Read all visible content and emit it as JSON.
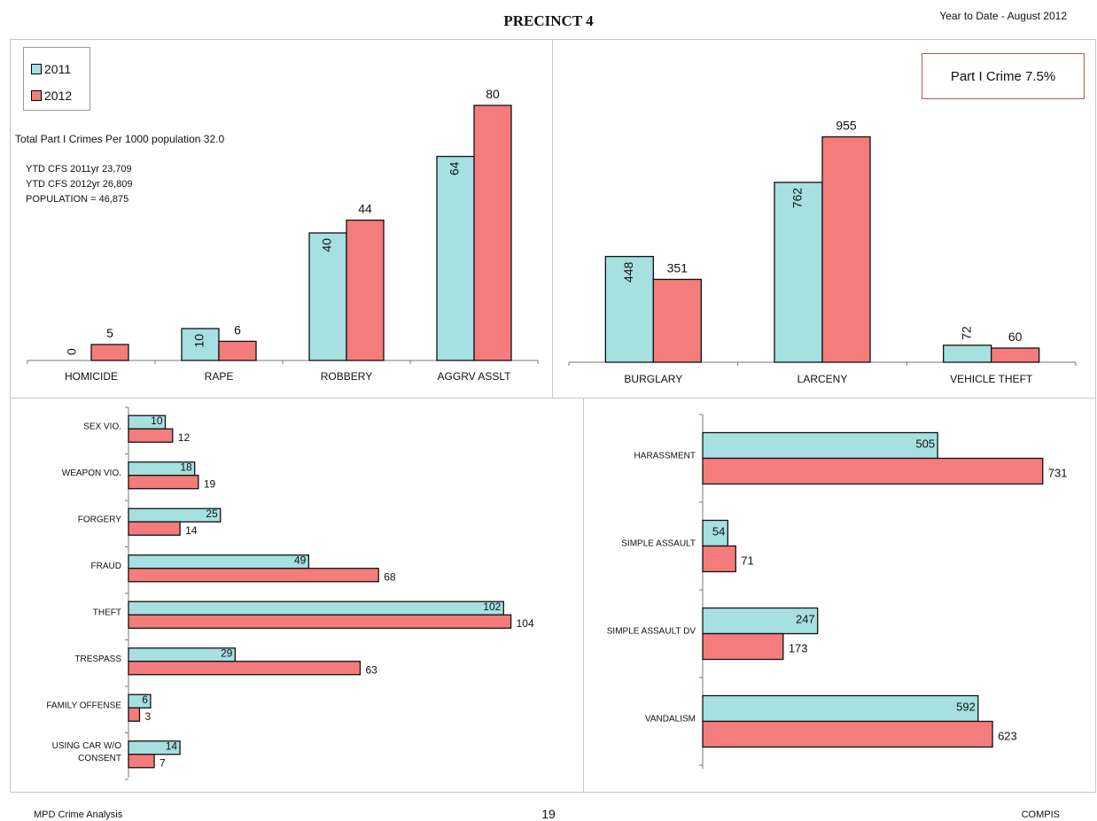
{
  "header": {
    "title": "PRECINCT 4",
    "subtitle": "Year to Date - August 2012"
  },
  "legend": {
    "s2011": "2011",
    "s2012": "2012"
  },
  "colors": {
    "s2011": "#a6e0e0",
    "s2012": "#f47c7c"
  },
  "stats": {
    "per_1000": "Total Part I Crimes Per 1000 population 32.0",
    "cfs_2011": "YTD CFS 2011yr 23,709",
    "cfs_2012": "YTD CFS 2012yr 26,809",
    "population": "POPULATION  = 46,875"
  },
  "badge": "Part I Crime 7.5%",
  "footer": {
    "left": "MPD Crime Analysis",
    "page": "19",
    "right": "COMPIS"
  },
  "chart_data": [
    {
      "type": "bar",
      "categories": [
        "HOMICIDE",
        "RAPE",
        "ROBBERY",
        "AGGRV ASSLT"
      ],
      "series": [
        {
          "name": "2011",
          "values": [
            0,
            10,
            40,
            64
          ]
        },
        {
          "name": "2012",
          "values": [
            5,
            6,
            44,
            80
          ]
        }
      ]
    },
    {
      "type": "bar",
      "categories": [
        "BURGLARY",
        "LARCENY",
        "VEHICLE THEFT"
      ],
      "series": [
        {
          "name": "2011",
          "values": [
            448,
            762,
            72
          ]
        },
        {
          "name": "2012",
          "values": [
            351,
            955,
            60
          ]
        }
      ]
    },
    {
      "type": "bar",
      "orientation": "horizontal",
      "categories": [
        "SEX VIO.",
        "WEAPON VIO.",
        "FORGERY",
        "FRAUD",
        "THEFT",
        "TRESPASS",
        "FAMILY OFFENSE",
        "USING CAR W/O CONSENT"
      ],
      "series": [
        {
          "name": "2011",
          "values": [
            10,
            18,
            25,
            49,
            102,
            29,
            6,
            14
          ]
        },
        {
          "name": "2012",
          "values": [
            12,
            19,
            14,
            68,
            104,
            63,
            3,
            7
          ]
        }
      ]
    },
    {
      "type": "bar",
      "orientation": "horizontal",
      "categories": [
        "HARASSMENT",
        "SIMPLE ASSAULT",
        "SIMPLE ASSAULT DV",
        "VANDALISM"
      ],
      "series": [
        {
          "name": "2011",
          "values": [
            505,
            54,
            247,
            592
          ]
        },
        {
          "name": "2012",
          "values": [
            731,
            71,
            173,
            623
          ]
        }
      ]
    }
  ]
}
